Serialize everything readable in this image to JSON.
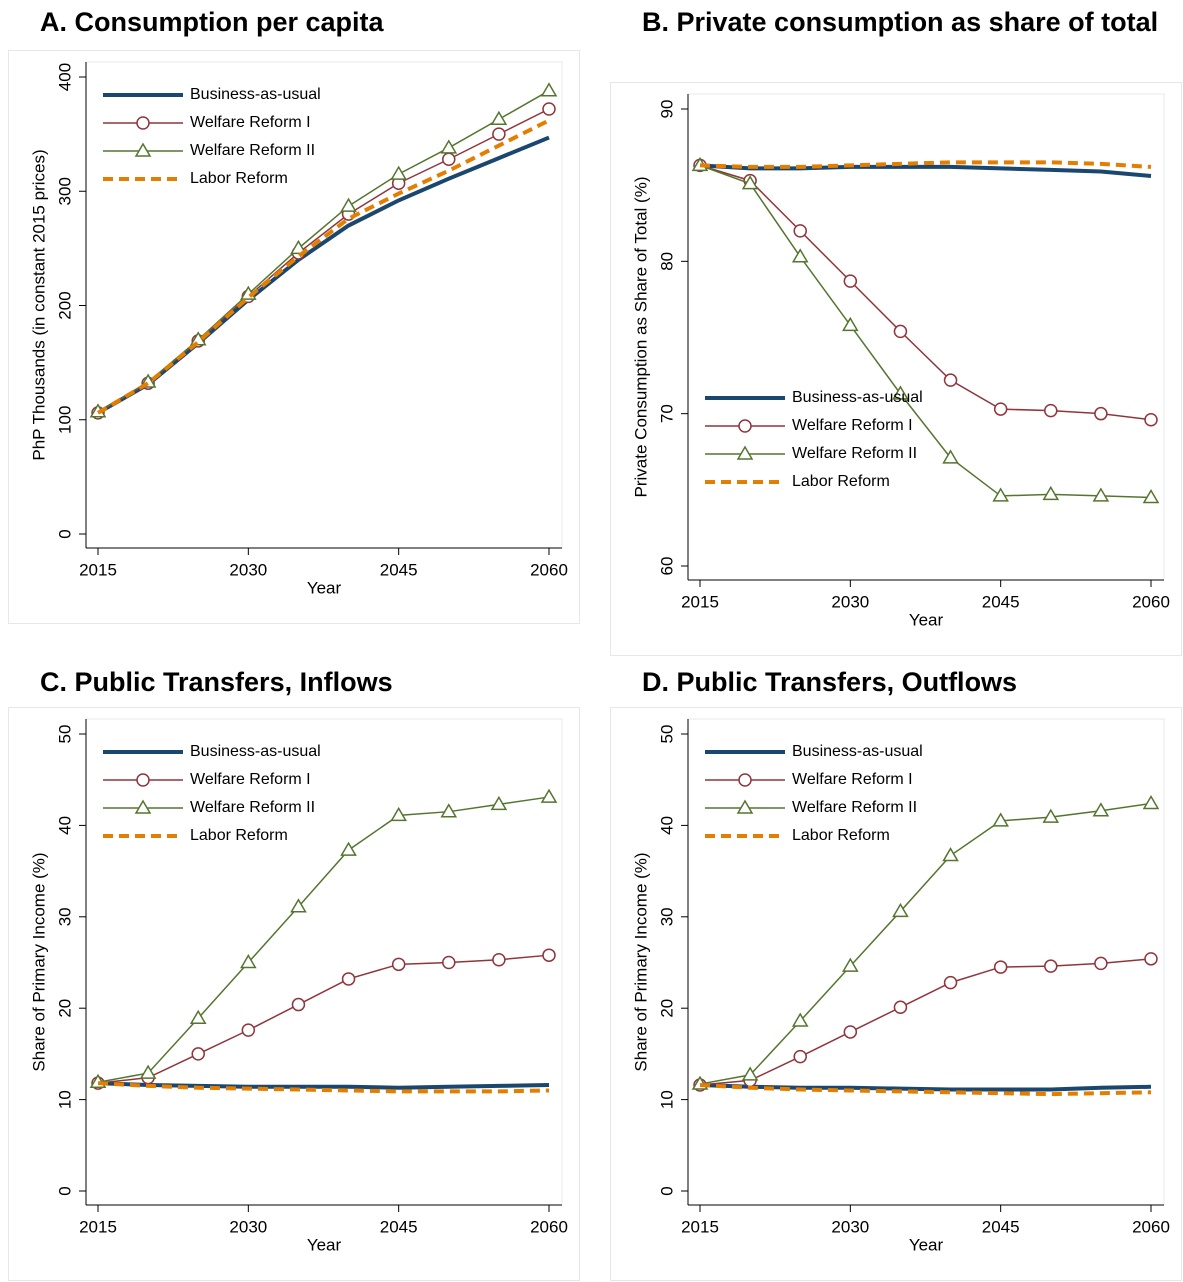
{
  "chart_data": [
    {
      "type": "line",
      "title": "A.  Consumption per capita",
      "xlabel": "Year",
      "ylabel": "PhP Thousands (in constant 2015 prices)",
      "x": [
        2015,
        2020,
        2025,
        2030,
        2035,
        2040,
        2045,
        2050,
        2055,
        2060
      ],
      "xlim": [
        2015,
        2060
      ],
      "xticks": [
        2015,
        2030,
        2045,
        2060
      ],
      "ylim": [
        0,
        400
      ],
      "yticks": [
        0,
        100,
        200,
        300,
        400
      ],
      "legend": "upper left",
      "series": [
        {
          "name": "Business-as-usual",
          "color": "#1a476f",
          "marker": "none",
          "dash": false,
          "values": [
            106,
            131,
            167,
            205,
            240,
            270,
            292,
            311,
            329,
            347
          ]
        },
        {
          "name": "Welfare Reform I",
          "color": "#90353b",
          "marker": "circle",
          "dash": false,
          "values": [
            106,
            132,
            169,
            208,
            246,
            280,
            307,
            328,
            350,
            372
          ]
        },
        {
          "name": "Welfare Reform II",
          "color": "#55752f",
          "marker": "triangle",
          "dash": false,
          "values": [
            107,
            133,
            170,
            210,
            250,
            287,
            315,
            338,
            363,
            388
          ]
        },
        {
          "name": "Labor Reform",
          "color": "#e37e00",
          "marker": "none",
          "dash": true,
          "values": [
            106,
            132,
            168,
            207,
            243,
            276,
            298,
            318,
            340,
            362
          ]
        }
      ]
    },
    {
      "type": "line",
      "title": "B.  Private consumption as share of total",
      "xlabel": "Year",
      "ylabel": "Private Consumption as Share of Total (%)",
      "x": [
        2015,
        2020,
        2025,
        2030,
        2035,
        2040,
        2045,
        2050,
        2055,
        2060
      ],
      "xlim": [
        2015,
        2060
      ],
      "xticks": [
        2015,
        2030,
        2045,
        2060
      ],
      "ylim": [
        60,
        90
      ],
      "yticks": [
        60,
        70,
        80,
        90
      ],
      "legend": "lower left",
      "series": [
        {
          "name": "Business-as-usual",
          "color": "#1a476f",
          "marker": "none",
          "dash": false,
          "values": [
            86.3,
            86.1,
            86.1,
            86.2,
            86.2,
            86.2,
            86.1,
            86.0,
            85.9,
            85.6
          ]
        },
        {
          "name": "Welfare Reform I",
          "color": "#90353b",
          "marker": "circle",
          "dash": false,
          "values": [
            86.3,
            85.3,
            82.0,
            78.7,
            75.4,
            72.2,
            70.3,
            70.2,
            70.0,
            69.6
          ]
        },
        {
          "name": "Welfare Reform II",
          "color": "#55752f",
          "marker": "triangle",
          "dash": false,
          "values": [
            86.3,
            85.1,
            80.3,
            75.8,
            71.3,
            67.1,
            64.6,
            64.7,
            64.6,
            64.5
          ]
        },
        {
          "name": "Labor Reform",
          "color": "#e37e00",
          "marker": "none",
          "dash": true,
          "values": [
            86.3,
            86.2,
            86.2,
            86.3,
            86.4,
            86.5,
            86.5,
            86.5,
            86.4,
            86.2
          ]
        }
      ]
    },
    {
      "type": "line",
      "title": "C.  Public Transfers, Inflows",
      "xlabel": "Year",
      "ylabel": "Share of Primary Income (%)",
      "x": [
        2015,
        2020,
        2025,
        2030,
        2035,
        2040,
        2045,
        2050,
        2055,
        2060
      ],
      "xlim": [
        2015,
        2060
      ],
      "xticks": [
        2015,
        2030,
        2045,
        2060
      ],
      "ylim": [
        0,
        50
      ],
      "yticks": [
        0,
        10,
        20,
        30,
        40,
        50
      ],
      "legend": "upper left",
      "series": [
        {
          "name": "Business-as-usual",
          "color": "#1a476f",
          "marker": "none",
          "dash": false,
          "values": [
            11.8,
            11.6,
            11.5,
            11.4,
            11.4,
            11.4,
            11.3,
            11.4,
            11.5,
            11.6
          ]
        },
        {
          "name": "Welfare Reform I",
          "color": "#90353b",
          "marker": "circle",
          "dash": false,
          "values": [
            11.8,
            12.4,
            15.0,
            17.6,
            20.4,
            23.2,
            24.8,
            25.0,
            25.3,
            25.8
          ]
        },
        {
          "name": "Welfare Reform II",
          "color": "#55752f",
          "marker": "triangle",
          "dash": false,
          "values": [
            11.9,
            12.9,
            18.9,
            25.0,
            31.1,
            37.3,
            41.1,
            41.5,
            42.3,
            43.1
          ]
        },
        {
          "name": "Labor Reform",
          "color": "#e37e00",
          "marker": "none",
          "dash": true,
          "values": [
            11.8,
            11.5,
            11.3,
            11.2,
            11.1,
            11.0,
            10.9,
            10.9,
            10.9,
            11.0
          ]
        }
      ]
    },
    {
      "type": "line",
      "title": "D.  Public Transfers, Outflows",
      "xlabel": "Year",
      "ylabel": "Share of Primary Income (%)",
      "x": [
        2015,
        2020,
        2025,
        2030,
        2035,
        2040,
        2045,
        2050,
        2055,
        2060
      ],
      "xlim": [
        2015,
        2060
      ],
      "xticks": [
        2015,
        2030,
        2045,
        2060
      ],
      "ylim": [
        0,
        50
      ],
      "yticks": [
        0,
        10,
        20,
        30,
        40,
        50
      ],
      "legend": "upper left",
      "series": [
        {
          "name": "Business-as-usual",
          "color": "#1a476f",
          "marker": "none",
          "dash": false,
          "values": [
            11.6,
            11.4,
            11.3,
            11.3,
            11.2,
            11.1,
            11.1,
            11.1,
            11.3,
            11.4
          ]
        },
        {
          "name": "Welfare Reform I",
          "color": "#90353b",
          "marker": "circle",
          "dash": false,
          "values": [
            11.6,
            12.1,
            14.7,
            17.4,
            20.1,
            22.8,
            24.5,
            24.6,
            24.9,
            25.4
          ]
        },
        {
          "name": "Welfare Reform II",
          "color": "#55752f",
          "marker": "triangle",
          "dash": false,
          "values": [
            11.7,
            12.7,
            18.6,
            24.6,
            30.6,
            36.7,
            40.5,
            40.9,
            41.6,
            42.4
          ]
        },
        {
          "name": "Labor Reform",
          "color": "#e37e00",
          "marker": "none",
          "dash": true,
          "values": [
            11.6,
            11.3,
            11.1,
            11.0,
            10.9,
            10.8,
            10.7,
            10.6,
            10.7,
            10.8
          ]
        }
      ]
    }
  ]
}
